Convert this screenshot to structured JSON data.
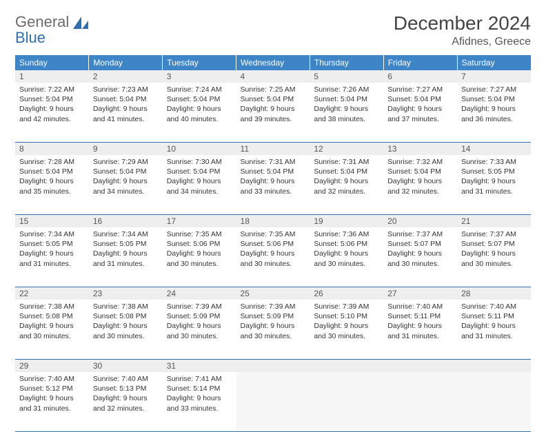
{
  "brand": {
    "line1": "General",
    "line2": "Blue"
  },
  "title": "December 2024",
  "location": "Afidnes, Greece",
  "colors": {
    "header_bg": "#3d85c6",
    "header_text": "#ffffff",
    "daynum_bg": "#eeeeee",
    "rule": "#2F6FAF",
    "logo_gray": "#6b6b6b",
    "logo_blue": "#2F6FAF"
  },
  "weekdays": [
    "Sunday",
    "Monday",
    "Tuesday",
    "Wednesday",
    "Thursday",
    "Friday",
    "Saturday"
  ],
  "weeks": [
    [
      {
        "n": "1",
        "sunrise": "7:22 AM",
        "sunset": "5:04 PM",
        "dh": "9",
        "dm": "42"
      },
      {
        "n": "2",
        "sunrise": "7:23 AM",
        "sunset": "5:04 PM",
        "dh": "9",
        "dm": "41"
      },
      {
        "n": "3",
        "sunrise": "7:24 AM",
        "sunset": "5:04 PM",
        "dh": "9",
        "dm": "40"
      },
      {
        "n": "4",
        "sunrise": "7:25 AM",
        "sunset": "5:04 PM",
        "dh": "9",
        "dm": "39"
      },
      {
        "n": "5",
        "sunrise": "7:26 AM",
        "sunset": "5:04 PM",
        "dh": "9",
        "dm": "38"
      },
      {
        "n": "6",
        "sunrise": "7:27 AM",
        "sunset": "5:04 PM",
        "dh": "9",
        "dm": "37"
      },
      {
        "n": "7",
        "sunrise": "7:27 AM",
        "sunset": "5:04 PM",
        "dh": "9",
        "dm": "36"
      }
    ],
    [
      {
        "n": "8",
        "sunrise": "7:28 AM",
        "sunset": "5:04 PM",
        "dh": "9",
        "dm": "35"
      },
      {
        "n": "9",
        "sunrise": "7:29 AM",
        "sunset": "5:04 PM",
        "dh": "9",
        "dm": "34"
      },
      {
        "n": "10",
        "sunrise": "7:30 AM",
        "sunset": "5:04 PM",
        "dh": "9",
        "dm": "34"
      },
      {
        "n": "11",
        "sunrise": "7:31 AM",
        "sunset": "5:04 PM",
        "dh": "9",
        "dm": "33"
      },
      {
        "n": "12",
        "sunrise": "7:31 AM",
        "sunset": "5:04 PM",
        "dh": "9",
        "dm": "32"
      },
      {
        "n": "13",
        "sunrise": "7:32 AM",
        "sunset": "5:04 PM",
        "dh": "9",
        "dm": "32"
      },
      {
        "n": "14",
        "sunrise": "7:33 AM",
        "sunset": "5:05 PM",
        "dh": "9",
        "dm": "31"
      }
    ],
    [
      {
        "n": "15",
        "sunrise": "7:34 AM",
        "sunset": "5:05 PM",
        "dh": "9",
        "dm": "31"
      },
      {
        "n": "16",
        "sunrise": "7:34 AM",
        "sunset": "5:05 PM",
        "dh": "9",
        "dm": "31"
      },
      {
        "n": "17",
        "sunrise": "7:35 AM",
        "sunset": "5:06 PM",
        "dh": "9",
        "dm": "30"
      },
      {
        "n": "18",
        "sunrise": "7:35 AM",
        "sunset": "5:06 PM",
        "dh": "9",
        "dm": "30"
      },
      {
        "n": "19",
        "sunrise": "7:36 AM",
        "sunset": "5:06 PM",
        "dh": "9",
        "dm": "30"
      },
      {
        "n": "20",
        "sunrise": "7:37 AM",
        "sunset": "5:07 PM",
        "dh": "9",
        "dm": "30"
      },
      {
        "n": "21",
        "sunrise": "7:37 AM",
        "sunset": "5:07 PM",
        "dh": "9",
        "dm": "30"
      }
    ],
    [
      {
        "n": "22",
        "sunrise": "7:38 AM",
        "sunset": "5:08 PM",
        "dh": "9",
        "dm": "30"
      },
      {
        "n": "23",
        "sunrise": "7:38 AM",
        "sunset": "5:08 PM",
        "dh": "9",
        "dm": "30"
      },
      {
        "n": "24",
        "sunrise": "7:39 AM",
        "sunset": "5:09 PM",
        "dh": "9",
        "dm": "30"
      },
      {
        "n": "25",
        "sunrise": "7:39 AM",
        "sunset": "5:09 PM",
        "dh": "9",
        "dm": "30"
      },
      {
        "n": "26",
        "sunrise": "7:39 AM",
        "sunset": "5:10 PM",
        "dh": "9",
        "dm": "30"
      },
      {
        "n": "27",
        "sunrise": "7:40 AM",
        "sunset": "5:11 PM",
        "dh": "9",
        "dm": "31"
      },
      {
        "n": "28",
        "sunrise": "7:40 AM",
        "sunset": "5:11 PM",
        "dh": "9",
        "dm": "31"
      }
    ],
    [
      {
        "n": "29",
        "sunrise": "7:40 AM",
        "sunset": "5:12 PM",
        "dh": "9",
        "dm": "31"
      },
      {
        "n": "30",
        "sunrise": "7:40 AM",
        "sunset": "5:13 PM",
        "dh": "9",
        "dm": "32"
      },
      {
        "n": "31",
        "sunrise": "7:41 AM",
        "sunset": "5:14 PM",
        "dh": "9",
        "dm": "33"
      },
      null,
      null,
      null,
      null
    ]
  ],
  "labels": {
    "sunrise": "Sunrise:",
    "sunset": "Sunset:",
    "daylight_prefix": "Daylight:",
    "hours_word": "hours",
    "and_word": "and",
    "minutes_word": "minutes."
  }
}
